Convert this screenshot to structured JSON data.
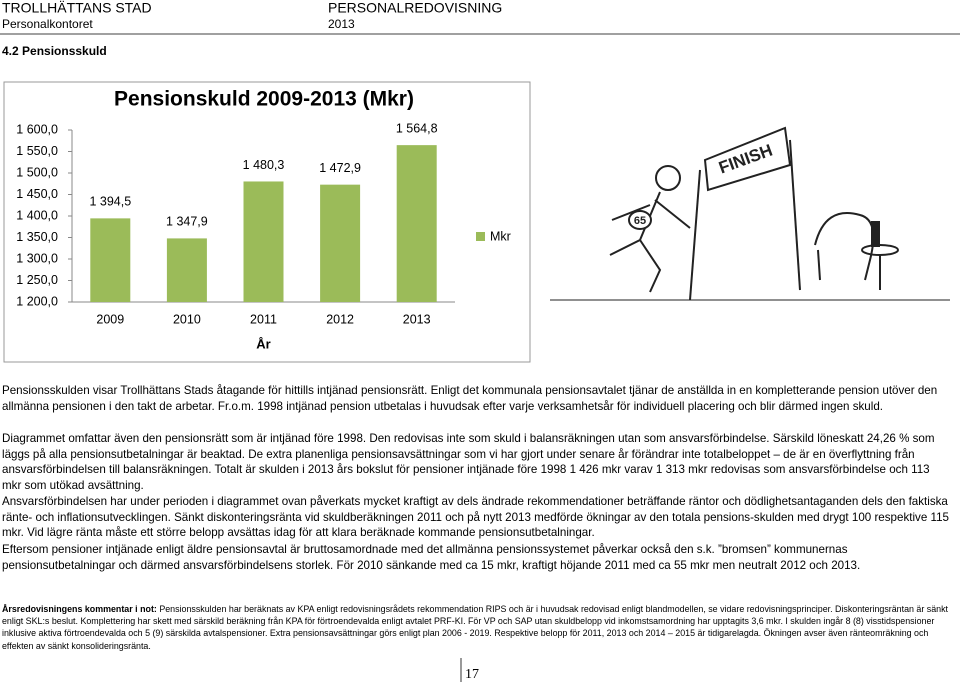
{
  "header": {
    "org": "TROLLHÄTTANS STAD",
    "report": "PERSONALREDOVISNING",
    "dept": "Personalkontoret",
    "year": "2013"
  },
  "section_title": "4.2 Pensionsskuld",
  "chart_data": {
    "type": "bar",
    "title": "Pensionskuld 2009-2013 (Mkr)",
    "xlabel": "År",
    "categories": [
      "2009",
      "2010",
      "2011",
      "2012",
      "2013"
    ],
    "series": [
      {
        "name": "Mkr",
        "color": "#9bbb59",
        "values": [
          1394.5,
          1347.9,
          1480.3,
          1472.9,
          1564.8
        ],
        "value_labels": [
          "1 394,5",
          "1 347,9",
          "1 480,3",
          "1 472,9",
          "1 564,8"
        ]
      }
    ],
    "ylim": [
      1200,
      1600
    ],
    "yticks": [
      {
        "value": 1200,
        "label": "1 200,0"
      },
      {
        "value": 1250,
        "label": "1 250,0"
      },
      {
        "value": 1300,
        "label": "1 300,0"
      },
      {
        "value": 1350,
        "label": "1 350,0"
      },
      {
        "value": 1400,
        "label": "1 400,0"
      },
      {
        "value": 1450,
        "label": "1 450,0"
      },
      {
        "value": 1500,
        "label": "1 500,0"
      },
      {
        "value": 1550,
        "label": "1 550,0"
      },
      {
        "value": 1600,
        "label": "1 600,0"
      }
    ],
    "legend": "right"
  },
  "illustration": {
    "banner": "FINISH",
    "bib": "65"
  },
  "paragraphs": [
    "Pensionsskulden visar Trollhättans Stads åtagande för hittills intjänad pensionsrätt. Enligt det kommunala pensionsavtalet tjänar de anställda in en kompletterande pension utöver den allmänna pensionen i den takt de arbetar. Fr.o.m. 1998 intjänad pension utbetalas i huvudsak efter varje verksamhetsår för individuell placering och blir därmed ingen skuld.",
    "Diagrammet omfattar även den pensionsrätt som är intjänad före 1998. Den redovisas inte som skuld i balansräkningen utan som ansvarsförbindelse. Särskild löneskatt 24,26 % som läggs på alla pensionsutbetalningar är beaktad. De extra planenliga pensionsavsättningar som vi har gjort under senare år förändrar inte totalbeloppet – de är en överflyttning från ansvarsförbindelsen till balansräkningen. Totalt är skulden i 2013 års bokslut för pensioner intjänade före 1998 1 426 mkr varav 1 313 mkr redovisas som ansvarsförbindelse och 113 mkr som utökad avsättning.",
    "Ansvarsförbindelsen har under perioden i diagrammet ovan påverkats mycket kraftigt av dels ändrade rekommendationer beträffande räntor och dödlighetsantaganden dels den faktiska ränte- och inflationsutvecklingen. Sänkt diskonteringsränta vid skuldberäkningen 2011 och på nytt 2013 medförde ökningar av den totala pensions-skulden med drygt 100 respektive 115 mkr. Vid lägre ränta måste ett större belopp avsättas idag för att klara beräknade kommande pensionsutbetalningar.",
    "Eftersom pensioner intjänade enligt äldre pensionsavtal är bruttosamordnade med det allmänna pensionssystemet påverkar också den s.k. ”bromsen” kommunernas pensionsutbetalningar och därmed ansvarsförbindelsens storlek. För 2010 sänkande med ca 15 mkr, kraftigt höjande 2011 med ca 55 mkr men neutralt 2012 och 2013."
  ],
  "footnote": {
    "label": "Årsredovisningens kommentar i not:",
    "text": " Pensionsskulden har beräknats av KPA enligt redovisningsrådets rekommendation RIPS och är i huvudsak redovisad enligt blandmodellen, se vidare redovisningsprinciper. Diskonteringsräntan är sänkt enligt SKL:s beslut. Komplettering har skett med särskild beräkning från KPA för förtroendevalda enligt avtalet PRF-KI. För VP och SAP utan skuldbelopp vid inkomstsamordning har upptagits 3,6 mkr. I skulden ingår 8 (8) visstidspensioner inklusive aktiva förtroendevalda och 5 (9) särskilda avtalspensioner. Extra pensionsavsättningar görs enligt plan 2006 - 2019. Respektive belopp för 2011, 2013 och 2014 – 2015 är tidigarelagda. Ökningen avser även ränteomräkning och effekten av sänkt konsolideringsränta."
  },
  "page_number": "17"
}
